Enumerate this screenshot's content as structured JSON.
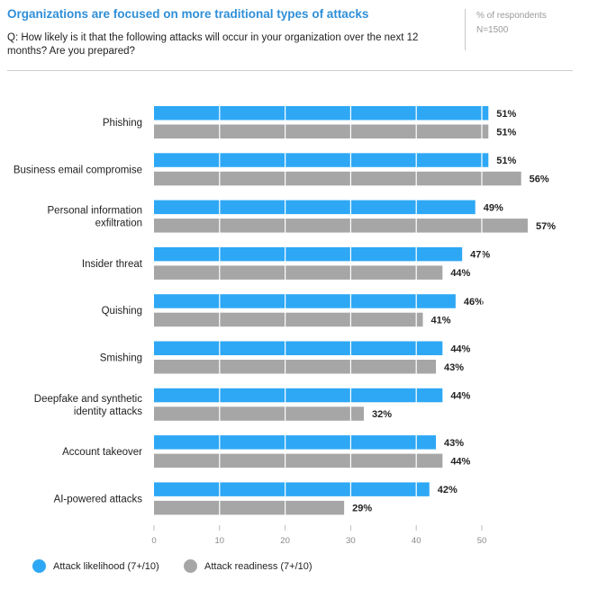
{
  "header": {
    "title": "Organizations are focused on more traditional types of attacks",
    "question": "Q: How likely is it that the following attacks will occur in your organization over the next 12 months? Are you prepared?",
    "unit_note": "% of respondents",
    "sample_note": "N=1500"
  },
  "colors": {
    "likelihood": "#2ea8f5",
    "readiness": "#a6a6a6"
  },
  "chart_data": {
    "type": "bar",
    "orientation": "horizontal",
    "categories": [
      [
        "Phishing"
      ],
      [
        "Business email compromise"
      ],
      [
        "Personal information",
        "exfiltration"
      ],
      [
        "Insider threat"
      ],
      [
        "Quishing"
      ],
      [
        "Smishing"
      ],
      [
        "Deepfake and synthetic",
        "identity attacks"
      ],
      [
        "Account takeover"
      ],
      [
        "AI-powered attacks"
      ]
    ],
    "series": [
      {
        "name": "Attack likelihood (7+/10)",
        "values": [
          51,
          51,
          49,
          47,
          46,
          44,
          44,
          43,
          42
        ]
      },
      {
        "name": "Attack readiness (7+/10)",
        "values": [
          51,
          56,
          57,
          44,
          41,
          43,
          32,
          44,
          29
        ]
      }
    ],
    "value_suffix": "%",
    "xticks": [
      0,
      10,
      20,
      30,
      40,
      50
    ],
    "xlim": [
      0,
      60
    ],
    "grid": true,
    "legend": "bottom-left"
  }
}
